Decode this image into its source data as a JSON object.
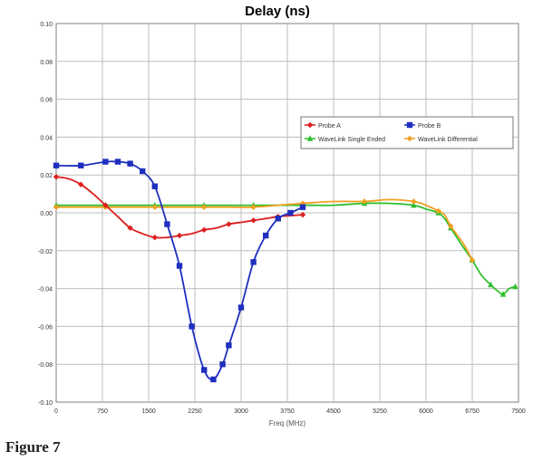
{
  "chart_data": {
    "type": "line",
    "title": "Delay (ns)",
    "xlabel": "Freq (MHz)",
    "ylabel": "",
    "xlim": [
      0,
      7500
    ],
    "ylim": [
      -0.1,
      0.1
    ],
    "x_ticks": [
      "0",
      "750",
      "1500",
      "2250",
      "3000",
      "3750",
      "4500",
      "5250",
      "6000",
      "6750",
      "7500"
    ],
    "y_ticks": [
      "0.10",
      "0.08",
      "0.06",
      "0.04",
      "0.02",
      "0.00",
      "-0.02",
      "-0.04",
      "-0.06",
      "-0.08",
      "-0.10"
    ],
    "grid": true,
    "legend_position": "right",
    "series": [
      {
        "name": "Probe A",
        "color": "#dd1f1f",
        "marker": "diamond",
        "x": [
          0,
          200,
          400,
          600,
          800,
          1000,
          1200,
          1400,
          1600,
          1800,
          2000,
          2200,
          2400,
          2600,
          2800,
          3000,
          3200,
          3400,
          3600,
          3800,
          4000
        ],
        "y": [
          0.019,
          0.018,
          0.015,
          0.01,
          0.004,
          -0.002,
          -0.008,
          -0.011,
          -0.013,
          -0.013,
          -0.012,
          -0.011,
          -0.009,
          -0.008,
          -0.006,
          -0.005,
          -0.004,
          -0.003,
          -0.002,
          -0.0015,
          -0.001
        ]
      },
      {
        "name": "Probe B",
        "color": "#1f2fbf",
        "marker": "square",
        "x": [
          0,
          400,
          800,
          1000,
          1200,
          1400,
          1600,
          1800,
          2000,
          2200,
          2400,
          2550,
          2700,
          2800,
          3000,
          3200,
          3400,
          3600,
          3800,
          4000
        ],
        "y": [
          0.025,
          0.025,
          0.027,
          0.027,
          0.026,
          0.022,
          0.014,
          -0.006,
          -0.028,
          -0.06,
          -0.083,
          -0.088,
          -0.08,
          -0.07,
          -0.05,
          -0.026,
          -0.012,
          -0.003,
          0.0,
          0.003
        ]
      },
      {
        "name": "WaveLink Single Ended",
        "color": "#2fbf2f",
        "marker": "triangle",
        "x": [
          0,
          400,
          800,
          1200,
          1600,
          2000,
          2400,
          2800,
          3200,
          3600,
          4000,
          4500,
          5000,
          5400,
          5800,
          6000,
          6200,
          6300,
          6400,
          6600,
          6750,
          6900,
          7050,
          7150,
          7250,
          7350,
          7450
        ],
        "y": [
          0.004,
          0.004,
          0.004,
          0.004,
          0.004,
          0.004,
          0.004,
          0.004,
          0.004,
          0.004,
          0.004,
          0.004,
          0.005,
          0.005,
          0.004,
          0.002,
          0.0,
          -0.003,
          -0.008,
          -0.018,
          -0.025,
          -0.033,
          -0.038,
          -0.041,
          -0.043,
          -0.04,
          -0.039
        ]
      },
      {
        "name": "WaveLink Differential",
        "color": "#f0a020",
        "marker": "diamond",
        "x": [
          0,
          400,
          800,
          1200,
          1600,
          2000,
          2400,
          2800,
          3200,
          3600,
          4000,
          4500,
          5000,
          5400,
          5800,
          6000,
          6200,
          6300,
          6400,
          6600,
          6750
        ],
        "y": [
          0.003,
          0.003,
          0.003,
          0.003,
          0.003,
          0.003,
          0.003,
          0.003,
          0.003,
          0.004,
          0.005,
          0.006,
          0.006,
          0.007,
          0.006,
          0.004,
          0.001,
          -0.001,
          -0.007,
          -0.016,
          -0.025
        ]
      }
    ]
  },
  "figure_caption": "Figure 7"
}
